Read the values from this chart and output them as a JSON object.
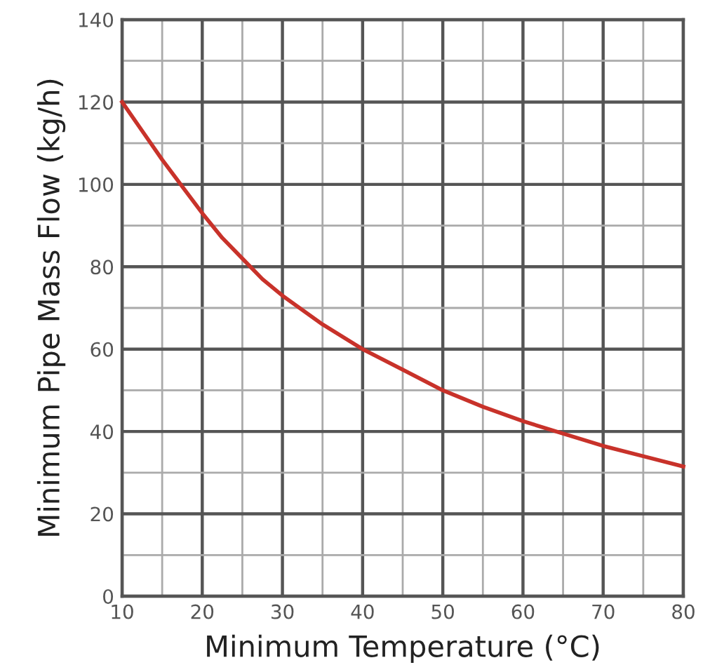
{
  "chart_data": {
    "type": "line",
    "xlabel": "Minimum Temperature (°C)",
    "ylabel": "Minimum Pipe Mass Flow (kg/h)",
    "xlim": [
      10,
      80
    ],
    "ylim": [
      0,
      140
    ],
    "xticks": [
      10,
      {
        "value": 15,
        "label": null
      },
      20,
      {
        "value": 25,
        "label": null
      },
      30,
      {
        "value": 35,
        "label": null
      },
      40,
      {
        "value": 45,
        "label": null
      },
      50,
      {
        "value": 55,
        "label": null
      },
      60,
      {
        "value": 65,
        "label": null
      },
      70,
      {
        "value": 75,
        "label": null
      },
      80
    ],
    "yticks": [
      0,
      {
        "value": 10,
        "label": null
      },
      20,
      {
        "value": 30,
        "label": null
      },
      40,
      {
        "value": 50,
        "label": null
      },
      60,
      {
        "value": 70,
        "label": null
      },
      80,
      {
        "value": 90,
        "label": null
      },
      100,
      {
        "value": 110,
        "label": null
      },
      120,
      {
        "value": 130,
        "label": null
      },
      140
    ],
    "grid": true,
    "marker": "none",
    "line_style": "solid",
    "x": [
      10,
      12.5,
      15,
      17.5,
      20,
      22.5,
      25,
      27.5,
      30,
      35,
      40,
      45,
      50,
      55,
      60,
      65,
      70,
      75,
      80
    ],
    "series": [
      {
        "color": "#c8322a",
        "values": [
          120,
          113,
          106,
          99.5,
          93,
          87,
          82,
          77,
          73,
          66,
          60,
          55,
          50,
          46,
          42.5,
          39.5,
          36.5,
          34,
          31.5
        ]
      }
    ]
  }
}
